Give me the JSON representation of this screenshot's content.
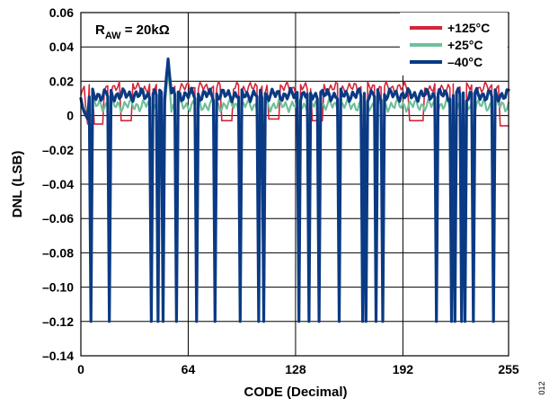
{
  "chart_data": {
    "type": "line",
    "xlabel": "CODE (Decimal)",
    "ylabel": "DNL (LSB)",
    "xlim": [
      0,
      255
    ],
    "ylim": [
      -0.14,
      0.06
    ],
    "x_ticks": [
      0,
      64,
      128,
      192,
      255
    ],
    "y_ticks": [
      0.06,
      0.04,
      0.02,
      0,
      -0.02,
      -0.04,
      -0.06,
      -0.08,
      -0.1,
      -0.12,
      -0.14
    ],
    "x_tick_labels": [
      "0",
      "64",
      "128",
      "192",
      "255"
    ],
    "y_tick_labels": [
      "0.06",
      "0.04",
      "0.02",
      "0",
      "–0.02",
      "–0.04",
      "–0.06",
      "–0.08",
      "–0.10",
      "–0.12",
      "–0.14"
    ],
    "grid": true,
    "annotation": {
      "main": "R",
      "subscript": "AW",
      "rest": " = 20kΩ"
    },
    "legend_position": "top-right",
    "figure_id": "012",
    "dip_codes": [
      6,
      17,
      42,
      46,
      49,
      57,
      69,
      80,
      95,
      106,
      109,
      130,
      136,
      142,
      154,
      168,
      170,
      176,
      180,
      212,
      221,
      223,
      227,
      229,
      234,
      246
    ],
    "dip_value": -0.12,
    "series": [
      {
        "name": "+125°C",
        "color": "#d4243a",
        "baseline": 0.016,
        "dip_value": -0.117,
        "start": [
          0.012,
          0.015,
          0.017,
          0.003,
          -0.005
        ],
        "peak": {
          "x": 52,
          "y": 0.022
        },
        "low_segments": [
          {
            "x0": 8,
            "x1": 13,
            "y": -0.005
          },
          {
            "x0": 24,
            "x1": 30,
            "y": -0.003
          },
          {
            "x0": 84,
            "x1": 90,
            "y": -0.003
          },
          {
            "x0": 112,
            "x1": 118,
            "y": -0.002
          },
          {
            "x0": 138,
            "x1": 144,
            "y": -0.003
          },
          {
            "x0": 196,
            "x1": 204,
            "y": -0.003
          },
          {
            "x0": 250,
            "x1": 255,
            "y": -0.006
          }
        ]
      },
      {
        "name": "+25°C",
        "color": "#6fbf9a",
        "baseline": 0.006,
        "dip_value": -0.118,
        "start": [
          0.008,
          0.004,
          0.003,
          0.004,
          0.004
        ],
        "peak": {
          "x": 52,
          "y": 0.026
        },
        "low_segments": []
      },
      {
        "name": "–40°C",
        "color": "#0a3a84",
        "baseline": 0.012,
        "dip_value": -0.12,
        "start": [
          0.01,
          0.005,
          0.002,
          0.0,
          -0.002
        ],
        "peak": {
          "x": 52,
          "y": 0.033
        },
        "low_segments": []
      }
    ]
  }
}
